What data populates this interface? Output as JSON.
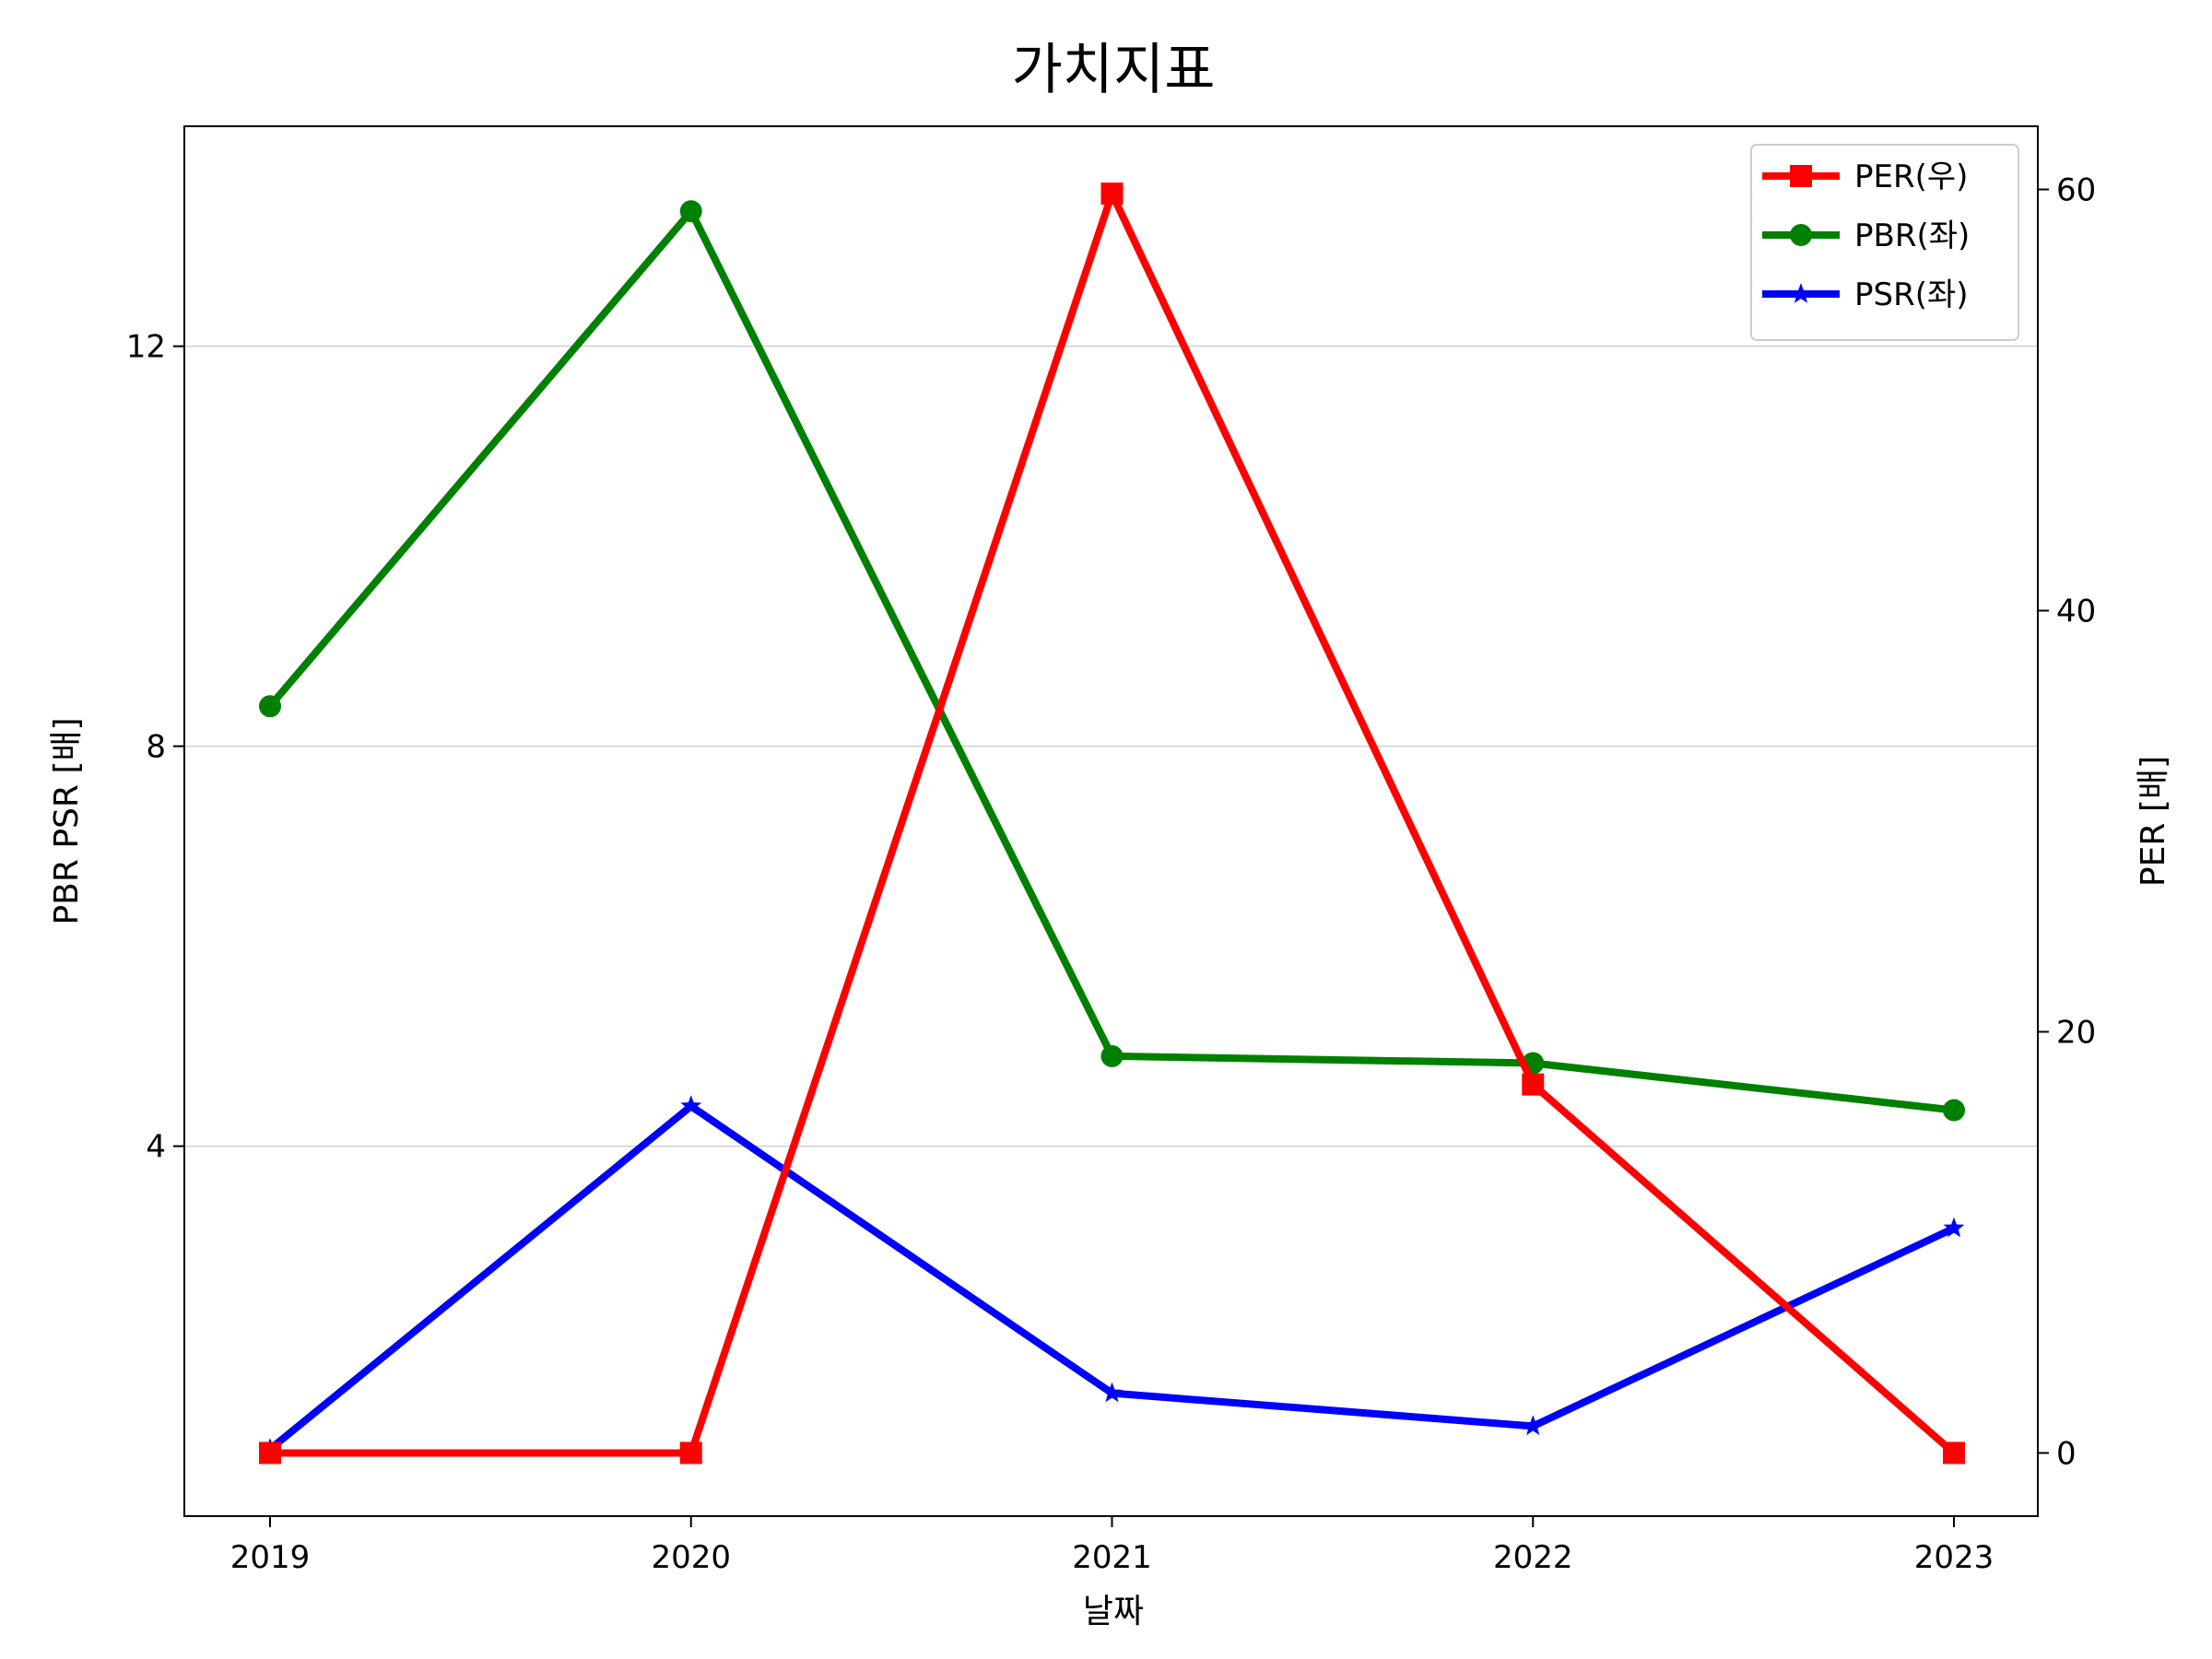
{
  "chart_data": {
    "type": "line",
    "title": "가치지표",
    "xlabel": "날짜",
    "ylabel_left": "PBR PSR [배]",
    "ylabel_right": "PER [배]",
    "ylabel_left_color": "#008000",
    "ylabel_right_color": "#ff0000",
    "categories": [
      "2019",
      "2020",
      "2021",
      "2022",
      "2023"
    ],
    "y_left": {
      "lim": [
        0.3,
        14.2
      ],
      "ticks": [
        4,
        8,
        12
      ],
      "grid": true
    },
    "y_right": {
      "lim": [
        -3,
        63
      ],
      "ticks": [
        0,
        20,
        40,
        60
      ]
    },
    "series": [
      {
        "name": "PER(우)",
        "axis": "right",
        "color": "#ff0000",
        "marker": "square",
        "values": [
          0,
          0,
          59.8,
          17.5,
          0
        ]
      },
      {
        "name": "PBR(좌)",
        "axis": "left",
        "color": "#008000",
        "marker": "circle",
        "values": [
          8.4,
          13.35,
          4.9,
          4.83,
          4.36
        ]
      },
      {
        "name": "PSR(좌)",
        "axis": "left",
        "color": "#0000ff",
        "marker": "star",
        "values": [
          0.97,
          4.4,
          1.53,
          1.2,
          3.18
        ]
      }
    ],
    "legend_position": "top-right"
  }
}
